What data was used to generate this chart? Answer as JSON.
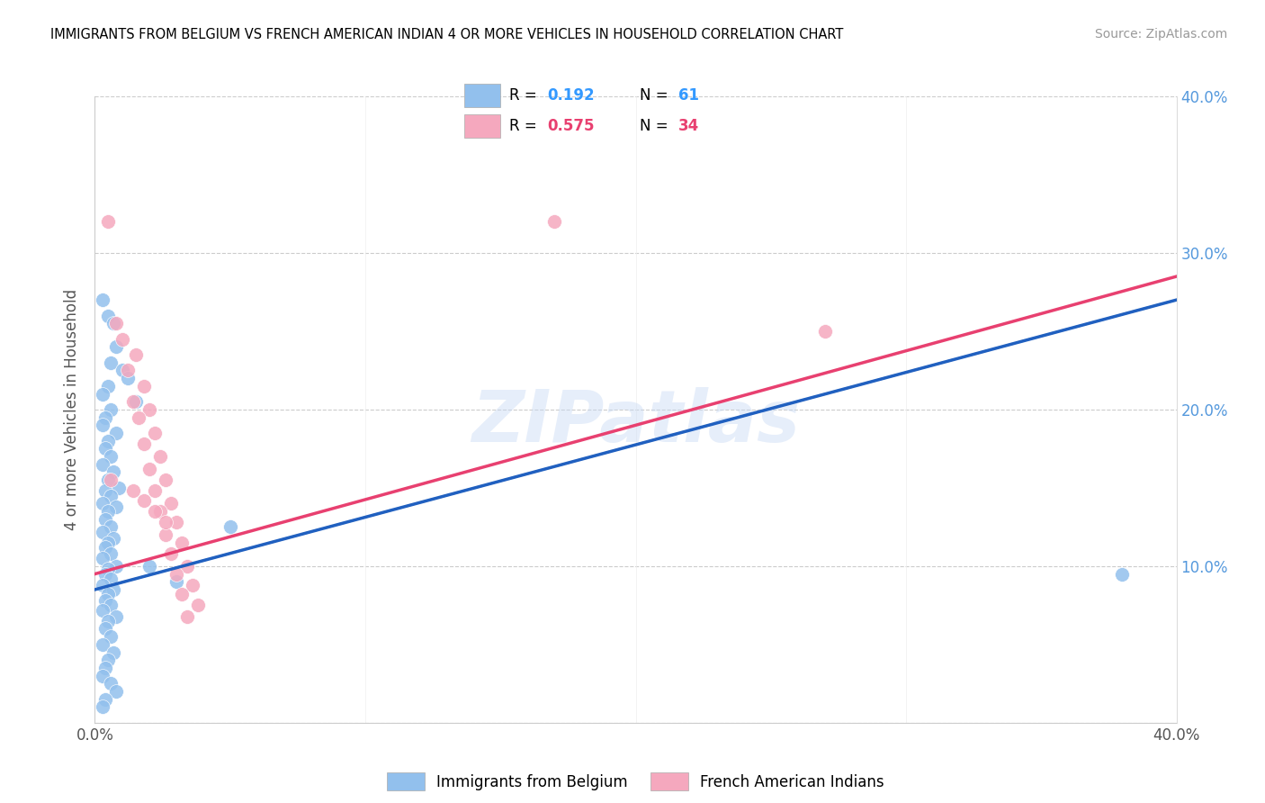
{
  "title": "IMMIGRANTS FROM BELGIUM VS FRENCH AMERICAN INDIAN 4 OR MORE VEHICLES IN HOUSEHOLD CORRELATION CHART",
  "source": "Source: ZipAtlas.com",
  "ylabel": "4 or more Vehicles in Household",
  "xmin": 0.0,
  "xmax": 0.4,
  "ymin": 0.0,
  "ymax": 0.4,
  "blue_R": 0.192,
  "blue_N": 61,
  "pink_R": 0.575,
  "pink_N": 34,
  "blue_color": "#92c0ed",
  "pink_color": "#f5a8be",
  "blue_line_color": "#2060c0",
  "pink_line_color": "#e84070",
  "legend_blue_label": "Immigrants from Belgium",
  "legend_pink_label": "French American Indians",
  "watermark": "ZIPatlas",
  "blue_points": [
    [
      0.003,
      0.27
    ],
    [
      0.005,
      0.26
    ],
    [
      0.007,
      0.255
    ],
    [
      0.008,
      0.24
    ],
    [
      0.006,
      0.23
    ],
    [
      0.01,
      0.225
    ],
    [
      0.012,
      0.22
    ],
    [
      0.005,
      0.215
    ],
    [
      0.003,
      0.21
    ],
    [
      0.015,
      0.205
    ],
    [
      0.006,
      0.2
    ],
    [
      0.004,
      0.195
    ],
    [
      0.003,
      0.19
    ],
    [
      0.008,
      0.185
    ],
    [
      0.005,
      0.18
    ],
    [
      0.004,
      0.175
    ],
    [
      0.006,
      0.17
    ],
    [
      0.003,
      0.165
    ],
    [
      0.007,
      0.16
    ],
    [
      0.005,
      0.155
    ],
    [
      0.009,
      0.15
    ],
    [
      0.004,
      0.148
    ],
    [
      0.006,
      0.145
    ],
    [
      0.003,
      0.14
    ],
    [
      0.008,
      0.138
    ],
    [
      0.005,
      0.135
    ],
    [
      0.004,
      0.13
    ],
    [
      0.006,
      0.125
    ],
    [
      0.003,
      0.122
    ],
    [
      0.007,
      0.118
    ],
    [
      0.005,
      0.115
    ],
    [
      0.004,
      0.112
    ],
    [
      0.006,
      0.108
    ],
    [
      0.003,
      0.105
    ],
    [
      0.008,
      0.1
    ],
    [
      0.005,
      0.098
    ],
    [
      0.004,
      0.095
    ],
    [
      0.006,
      0.092
    ],
    [
      0.003,
      0.088
    ],
    [
      0.007,
      0.085
    ],
    [
      0.005,
      0.082
    ],
    [
      0.004,
      0.078
    ],
    [
      0.006,
      0.075
    ],
    [
      0.003,
      0.072
    ],
    [
      0.008,
      0.068
    ],
    [
      0.005,
      0.065
    ],
    [
      0.004,
      0.06
    ],
    [
      0.006,
      0.055
    ],
    [
      0.003,
      0.05
    ],
    [
      0.007,
      0.045
    ],
    [
      0.005,
      0.04
    ],
    [
      0.004,
      0.035
    ],
    [
      0.003,
      0.03
    ],
    [
      0.006,
      0.025
    ],
    [
      0.008,
      0.02
    ],
    [
      0.004,
      0.015
    ],
    [
      0.003,
      0.01
    ],
    [
      0.05,
      0.125
    ],
    [
      0.38,
      0.095
    ],
    [
      0.02,
      0.1
    ],
    [
      0.03,
      0.09
    ]
  ],
  "pink_points": [
    [
      0.005,
      0.32
    ],
    [
      0.008,
      0.255
    ],
    [
      0.01,
      0.245
    ],
    [
      0.015,
      0.235
    ],
    [
      0.012,
      0.225
    ],
    [
      0.018,
      0.215
    ],
    [
      0.014,
      0.205
    ],
    [
      0.02,
      0.2
    ],
    [
      0.016,
      0.195
    ],
    [
      0.022,
      0.185
    ],
    [
      0.018,
      0.178
    ],
    [
      0.024,
      0.17
    ],
    [
      0.02,
      0.162
    ],
    [
      0.026,
      0.155
    ],
    [
      0.022,
      0.148
    ],
    [
      0.028,
      0.14
    ],
    [
      0.024,
      0.135
    ],
    [
      0.03,
      0.128
    ],
    [
      0.026,
      0.12
    ],
    [
      0.032,
      0.115
    ],
    [
      0.028,
      0.108
    ],
    [
      0.034,
      0.1
    ],
    [
      0.03,
      0.095
    ],
    [
      0.036,
      0.088
    ],
    [
      0.032,
      0.082
    ],
    [
      0.038,
      0.075
    ],
    [
      0.034,
      0.068
    ],
    [
      0.006,
      0.155
    ],
    [
      0.014,
      0.148
    ],
    [
      0.018,
      0.142
    ],
    [
      0.022,
      0.135
    ],
    [
      0.026,
      0.128
    ],
    [
      0.27,
      0.25
    ],
    [
      0.17,
      0.32
    ]
  ]
}
